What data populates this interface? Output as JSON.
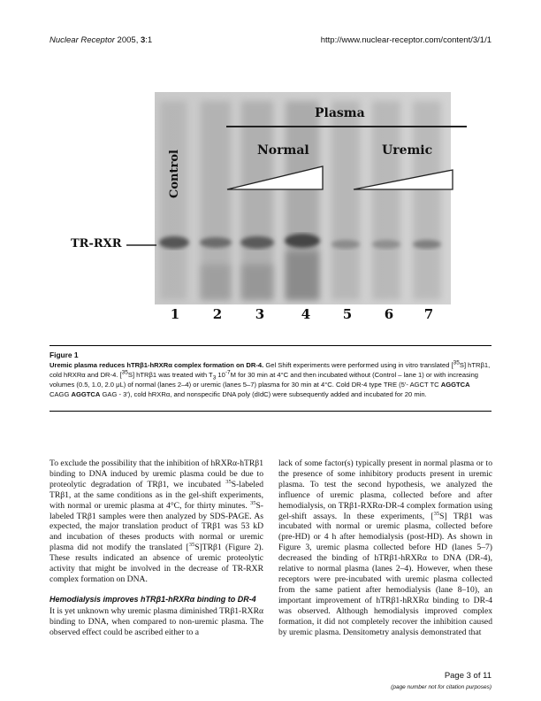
{
  "header": {
    "journal": "Nuclear Receptor",
    "year_vol": " 2005, ",
    "volume_issue": "3",
    "page_ref": ":1",
    "url": "http://www.nuclear-receptor.com/content/3/1/1"
  },
  "figure": {
    "labels": {
      "plasma": "Plasma",
      "normal": "Normal",
      "uremic": "Uremic",
      "control": "Control",
      "band": "TR-RXR",
      "lanes": [
        "1",
        "2",
        "3",
        "4",
        "5",
        "6",
        "7"
      ]
    },
    "caption_label": "Figure 1",
    "caption_title": "Uremic plasma reduces hTRβ1-hRXRα complex formation on DR-4.",
    "caption_p1": " Gel Shift experiments were performed using in vitro translated [",
    "caption_p1b": "S] hTRβ1, cold hRXRα and DR-4. [",
    "caption_p1c": "S] hTRβ1 was treated with T",
    "caption_p1d": " 10",
    "caption_p1e": "M for 30 min at 4°C and then incubated without (Control – lane 1) or with increasing volumes (0.5, 1.0, 2.0 μL) of normal (lanes 2–4) or uremic (lanes 5–7) plasma for 30 min at 4°C. Cold DR-4 type TRE (5'- AGCT TC ",
    "caption_seq1": "AGGTCA",
    "caption_seq_mid": " CAGG ",
    "caption_seq2": "AGGTCA",
    "caption_p1f": " GAG - 3'), cold hRXRα, and nonspecific DNA poly (dIdC) were subsequently added and incubated for 20 min.",
    "sup35": "35",
    "sub3": "3",
    "supm7": "-7"
  },
  "body": {
    "left_p1a": "To exclude the possibility that the inhibition of hRXRα-hTRβ1 binding to DNA induced by uremic plasma could be due to proteolytic degradation of TRβ1, we incubated ",
    "left_p1b": "S-labeled TRβ1, at the same conditions as in the gel-shift experiments, with normal or uremic plasma at 4°C, for thirty minutes. ",
    "left_p1c": "S-labeled TRβ1 samples were then analyzed by SDS-PAGE. As expected, the major translation product of TRβ1 was 53 kD and incubation of theses products with normal or uremic plasma did not modify the translated [",
    "left_p1d": "S]TRβ1 (Figure 2). These results indicated an absence of uremic proteolytic activity that might be involved in the decrease of TR-RXR complex formation on DNA.",
    "subheading": "Hemodialysis improves hTRβ1-hRXRα binding to DR-4",
    "left_p2": "It is yet unknown why uremic plasma diminished TRβ1-RXRα binding to DNA, when compared to non-uremic plasma. The observed effect could be ascribed either to a",
    "right_p1a": "lack of some factor(s) typically present in normal plasma or to the presence of some inhibitory products present in uremic plasma. To test the second hypothesis, we analyzed the influence of uremic plasma, collected before and after hemodialysis, on TRβ1-RXRα-DR-4 complex formation using gel-shift assays. In these experiments, [",
    "right_p1b": "S] TRβ1 was incubated with normal or uremic plasma, collected before (pre-HD) or 4 h after hemodialysis (post-HD). As shown in Figure 3, uremic plasma collected before HD (lanes 5–7) decreased the binding of hTRβ1-hRXRα to DNA (DR-4), relative to normal plasma (lanes 2–4). However, when these receptors were pre-incubated with uremic plasma collected from the same patient after hemodialysis (lane 8–10), an important improvement of hTRβ1-hRXRα binding to DR-4 was observed. Although hemodialysis improved complex formation, it did not completely recover the inhibition caused by uremic plasma. Densitometry analysis demonstrated that",
    "sup35": "35"
  },
  "footer": {
    "page": "Page 3 of 11",
    "note": "(page number not for citation purposes)"
  }
}
